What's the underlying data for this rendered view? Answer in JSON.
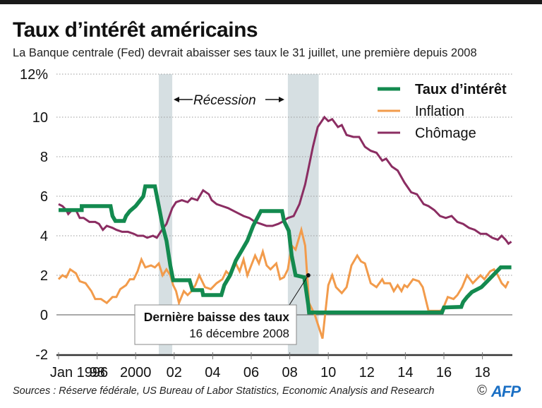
{
  "header": {
    "title": "Taux d’intérêt américains",
    "subtitle": "La Banque centrale (Fed) devrait abaisser ses taux le 31 juillet, une première depuis 2008"
  },
  "footer": {
    "source": "Sources : Réserve fédérale, US Bureau of Labor Statistics, Economic Analysis and Research",
    "copyright": "©",
    "brand": "AFP"
  },
  "chart_data": {
    "type": "line",
    "title": "Taux d’intérêt américains",
    "xlabel": "",
    "ylabel": "%",
    "xlim": [
      1996,
      2019.5
    ],
    "ylim": [
      -2,
      12
    ],
    "grid": true,
    "legend_position": "top-right",
    "y_ticks": [
      {
        "value": 12,
        "label": "12%"
      },
      {
        "value": 10,
        "label": "10"
      },
      {
        "value": 8,
        "label": "8"
      },
      {
        "value": 6,
        "label": "6"
      },
      {
        "value": 4,
        "label": "4"
      },
      {
        "value": 2,
        "label": "2"
      },
      {
        "value": 0,
        "label": "0"
      },
      {
        "value": -2,
        "label": "-2"
      }
    ],
    "x_ticks": [
      {
        "value": 1996,
        "label": "Jan 1996"
      },
      {
        "value": 1998,
        "label": "98"
      },
      {
        "value": 2000,
        "label": "2000"
      },
      {
        "value": 2002,
        "label": "02"
      },
      {
        "value": 2004,
        "label": "04"
      },
      {
        "value": 2006,
        "label": "06"
      },
      {
        "value": 2008,
        "label": "08"
      },
      {
        "value": 2010,
        "label": "10"
      },
      {
        "value": 2012,
        "label": "12"
      },
      {
        "value": 2014,
        "label": "14"
      },
      {
        "value": 2016,
        "label": "16"
      },
      {
        "value": 2018,
        "label": "18"
      }
    ],
    "recessions": [
      {
        "start": 2001.2,
        "end": 2001.9
      },
      {
        "start": 2007.9,
        "end": 2009.5
      }
    ],
    "recession_label": "Récession",
    "annotation": {
      "title": "Dernière baisse des taux",
      "date": "16 décembre 2008",
      "x": 2008.96,
      "y": 2.0
    },
    "series": [
      {
        "name": "Taux d’intérêt",
        "color": "#138a4f",
        "points": [
          [
            1996,
            5.3
          ],
          [
            1996.9,
            5.3
          ],
          [
            1997.2,
            5.3
          ],
          [
            1997.2,
            5.5
          ],
          [
            1998.7,
            5.5
          ],
          [
            1998.8,
            5.0
          ],
          [
            1998.95,
            4.75
          ],
          [
            1999.4,
            4.75
          ],
          [
            1999.5,
            5.0
          ],
          [
            1999.7,
            5.25
          ],
          [
            2000.0,
            5.5
          ],
          [
            2000.2,
            5.75
          ],
          [
            2000.4,
            6.0
          ],
          [
            2000.5,
            6.5
          ],
          [
            2001.0,
            6.5
          ],
          [
            2001.2,
            5.5
          ],
          [
            2001.4,
            4.5
          ],
          [
            2001.6,
            3.75
          ],
          [
            2001.8,
            2.5
          ],
          [
            2001.95,
            1.75
          ],
          [
            2002.8,
            1.75
          ],
          [
            2002.95,
            1.25
          ],
          [
            2003.45,
            1.25
          ],
          [
            2003.5,
            1.0
          ],
          [
            2004.45,
            1.0
          ],
          [
            2004.6,
            1.5
          ],
          [
            2004.9,
            2.0
          ],
          [
            2005.2,
            2.75
          ],
          [
            2005.5,
            3.25
          ],
          [
            2005.8,
            3.75
          ],
          [
            2006.1,
            4.5
          ],
          [
            2006.5,
            5.25
          ],
          [
            2007.6,
            5.25
          ],
          [
            2007.7,
            4.75
          ],
          [
            2007.95,
            4.25
          ],
          [
            2008.1,
            3.0
          ],
          [
            2008.3,
            2.0
          ],
          [
            2008.75,
            1.9
          ],
          [
            2008.96,
            0.5
          ],
          [
            2009.0,
            0.12
          ],
          [
            2015.9,
            0.12
          ],
          [
            2016.0,
            0.37
          ],
          [
            2016.9,
            0.4
          ],
          [
            2017.0,
            0.65
          ],
          [
            2017.2,
            0.9
          ],
          [
            2017.45,
            1.15
          ],
          [
            2017.95,
            1.4
          ],
          [
            2018.2,
            1.65
          ],
          [
            2018.45,
            1.9
          ],
          [
            2018.7,
            2.15
          ],
          [
            2018.95,
            2.4
          ],
          [
            2019.5,
            2.4
          ]
        ]
      },
      {
        "name": "Inflation",
        "color": "#f29b4b",
        "points": [
          [
            1996,
            1.8
          ],
          [
            1996.2,
            2.0
          ],
          [
            1996.4,
            1.9
          ],
          [
            1996.6,
            2.3
          ],
          [
            1996.9,
            2.1
          ],
          [
            1997.1,
            1.7
          ],
          [
            1997.4,
            1.6
          ],
          [
            1997.7,
            1.2
          ],
          [
            1997.9,
            0.8
          ],
          [
            1998.2,
            0.8
          ],
          [
            1998.5,
            0.6
          ],
          [
            1998.8,
            0.9
          ],
          [
            1999.0,
            0.9
          ],
          [
            1999.2,
            1.3
          ],
          [
            1999.5,
            1.5
          ],
          [
            1999.7,
            1.8
          ],
          [
            1999.9,
            1.8
          ],
          [
            2000.1,
            2.2
          ],
          [
            2000.3,
            2.8
          ],
          [
            2000.5,
            2.4
          ],
          [
            2000.8,
            2.5
          ],
          [
            2001.0,
            2.4
          ],
          [
            2001.2,
            2.6
          ],
          [
            2001.4,
            2.0
          ],
          [
            2001.6,
            2.3
          ],
          [
            2001.8,
            2.0
          ],
          [
            2001.95,
            1.5
          ],
          [
            2002.1,
            1.2
          ],
          [
            2002.25,
            0.6
          ],
          [
            2002.5,
            1.2
          ],
          [
            2002.7,
            1.0
          ],
          [
            2002.9,
            1.2
          ],
          [
            2003.1,
            1.5
          ],
          [
            2003.3,
            2.0
          ],
          [
            2003.6,
            1.4
          ],
          [
            2003.9,
            1.3
          ],
          [
            2004.2,
            1.6
          ],
          [
            2004.5,
            1.8
          ],
          [
            2004.7,
            2.2
          ],
          [
            2004.9,
            2.0
          ],
          [
            2005.2,
            2.6
          ],
          [
            2005.4,
            2.2
          ],
          [
            2005.6,
            2.8
          ],
          [
            2005.8,
            2.0
          ],
          [
            2006.0,
            2.5
          ],
          [
            2006.2,
            3.0
          ],
          [
            2006.4,
            2.6
          ],
          [
            2006.6,
            3.2
          ],
          [
            2006.8,
            2.5
          ],
          [
            2007.0,
            2.3
          ],
          [
            2007.3,
            2.6
          ],
          [
            2007.5,
            1.8
          ],
          [
            2007.7,
            1.9
          ],
          [
            2007.9,
            2.3
          ],
          [
            2008.1,
            3.5
          ],
          [
            2008.3,
            3.3
          ],
          [
            2008.6,
            4.3
          ],
          [
            2008.8,
            3.5
          ],
          [
            2009.0,
            0.6
          ],
          [
            2009.3,
            0.0
          ],
          [
            2009.7,
            -1.2
          ],
          [
            2010.0,
            1.5
          ],
          [
            2010.2,
            2.0
          ],
          [
            2010.4,
            1.4
          ],
          [
            2010.7,
            1.1
          ],
          [
            2010.95,
            1.4
          ],
          [
            2011.2,
            2.5
          ],
          [
            2011.5,
            3.0
          ],
          [
            2011.7,
            2.7
          ],
          [
            2011.9,
            2.6
          ],
          [
            2012.2,
            1.6
          ],
          [
            2012.5,
            1.4
          ],
          [
            2012.8,
            1.8
          ],
          [
            2012.9,
            1.6
          ],
          [
            2013.2,
            1.6
          ],
          [
            2013.4,
            1.2
          ],
          [
            2013.6,
            1.5
          ],
          [
            2013.8,
            1.2
          ],
          [
            2013.95,
            1.5
          ],
          [
            2014.1,
            1.4
          ],
          [
            2014.4,
            1.8
          ],
          [
            2014.7,
            1.7
          ],
          [
            2014.9,
            1.4
          ],
          [
            2015.2,
            0.2
          ],
          [
            2015.5,
            0.2
          ],
          [
            2015.8,
            0.2
          ],
          [
            2015.95,
            0.3
          ],
          [
            2016.2,
            0.9
          ],
          [
            2016.5,
            0.8
          ],
          [
            2016.7,
            1.0
          ],
          [
            2016.95,
            1.4
          ],
          [
            2017.2,
            2.0
          ],
          [
            2017.5,
            1.6
          ],
          [
            2017.7,
            1.8
          ],
          [
            2017.9,
            2.0
          ],
          [
            2018.1,
            1.8
          ],
          [
            2018.4,
            2.2
          ],
          [
            2018.6,
            2.3
          ],
          [
            2018.8,
            2.0
          ],
          [
            2019.0,
            1.6
          ],
          [
            2019.2,
            1.4
          ],
          [
            2019.35,
            1.7
          ]
        ]
      },
      {
        "name": "Chômage",
        "color": "#8b2d62",
        "points": [
          [
            1996,
            5.6
          ],
          [
            1996.2,
            5.5
          ],
          [
            1996.4,
            5.3
          ],
          [
            1996.5,
            5.1
          ],
          [
            1996.7,
            5.3
          ],
          [
            1996.9,
            5.3
          ],
          [
            1997.1,
            4.9
          ],
          [
            1997.3,
            4.9
          ],
          [
            1997.6,
            4.7
          ],
          [
            1997.9,
            4.7
          ],
          [
            1998.1,
            4.6
          ],
          [
            1998.3,
            4.3
          ],
          [
            1998.5,
            4.5
          ],
          [
            1998.8,
            4.4
          ],
          [
            1999.0,
            4.3
          ],
          [
            1999.3,
            4.2
          ],
          [
            1999.6,
            4.2
          ],
          [
            1999.9,
            4.1
          ],
          [
            2000.1,
            4.0
          ],
          [
            2000.4,
            4.0
          ],
          [
            2000.6,
            3.9
          ],
          [
            2000.9,
            4.0
          ],
          [
            2001.1,
            3.9
          ],
          [
            2001.3,
            4.2
          ],
          [
            2001.6,
            4.6
          ],
          [
            2001.9,
            5.4
          ],
          [
            2002.1,
            5.7
          ],
          [
            2002.4,
            5.8
          ],
          [
            2002.7,
            5.7
          ],
          [
            2002.9,
            5.9
          ],
          [
            2003.2,
            5.8
          ],
          [
            2003.5,
            6.3
          ],
          [
            2003.8,
            6.1
          ],
          [
            2003.95,
            5.8
          ],
          [
            2004.2,
            5.6
          ],
          [
            2004.5,
            5.5
          ],
          [
            2004.8,
            5.4
          ],
          [
            2005.2,
            5.2
          ],
          [
            2005.6,
            5.0
          ],
          [
            2005.9,
            4.9
          ],
          [
            2006.2,
            4.7
          ],
          [
            2006.5,
            4.6
          ],
          [
            2006.8,
            4.5
          ],
          [
            2007.1,
            4.5
          ],
          [
            2007.4,
            4.6
          ],
          [
            2007.6,
            4.7
          ],
          [
            2007.9,
            4.9
          ],
          [
            2008.2,
            5.0
          ],
          [
            2008.5,
            5.6
          ],
          [
            2008.8,
            6.6
          ],
          [
            2008.95,
            7.3
          ],
          [
            2009.2,
            8.5
          ],
          [
            2009.45,
            9.5
          ],
          [
            2009.8,
            10.0
          ],
          [
            2010.0,
            9.8
          ],
          [
            2010.2,
            9.9
          ],
          [
            2010.5,
            9.5
          ],
          [
            2010.7,
            9.6
          ],
          [
            2010.95,
            9.1
          ],
          [
            2011.3,
            9.0
          ],
          [
            2011.6,
            9.0
          ],
          [
            2011.9,
            8.5
          ],
          [
            2012.2,
            8.3
          ],
          [
            2012.5,
            8.2
          ],
          [
            2012.8,
            7.8
          ],
          [
            2013.0,
            7.9
          ],
          [
            2013.3,
            7.5
          ],
          [
            2013.6,
            7.3
          ],
          [
            2013.95,
            6.7
          ],
          [
            2014.3,
            6.2
          ],
          [
            2014.6,
            6.1
          ],
          [
            2014.95,
            5.6
          ],
          [
            2015.2,
            5.5
          ],
          [
            2015.5,
            5.3
          ],
          [
            2015.8,
            5.0
          ],
          [
            2016.1,
            4.9
          ],
          [
            2016.4,
            5.0
          ],
          [
            2016.7,
            4.7
          ],
          [
            2017.0,
            4.6
          ],
          [
            2017.3,
            4.4
          ],
          [
            2017.6,
            4.3
          ],
          [
            2017.9,
            4.1
          ],
          [
            2018.2,
            4.1
          ],
          [
            2018.5,
            3.9
          ],
          [
            2018.8,
            3.8
          ],
          [
            2019.0,
            4.0
          ],
          [
            2019.2,
            3.8
          ],
          [
            2019.35,
            3.6
          ],
          [
            2019.5,
            3.7
          ]
        ]
      }
    ]
  }
}
